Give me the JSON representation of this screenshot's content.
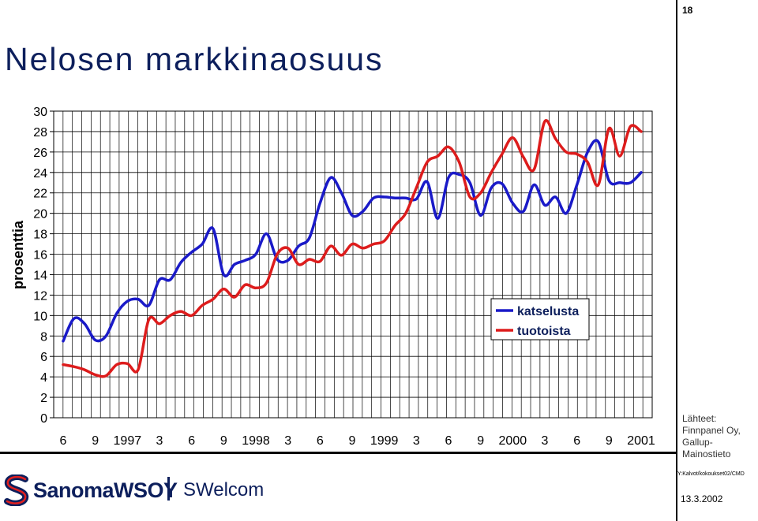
{
  "slide": {
    "page_number": "18",
    "title": "Nelosen markkinaosuus",
    "sources_label": "Lähteet:",
    "sources": [
      "Finnpanel Oy,",
      "Gallup-Mainostieto"
    ],
    "file_path": "Y:Kalvot/kokoukset02/CMD",
    "date": "13.3.2002",
    "logo_text": "SanomaWSOY",
    "division": "SWelcom"
  },
  "colors": {
    "title": "#0d1f5c",
    "katselusta": "#1a1ac8",
    "tuotoista": "#dd1c1c"
  },
  "chart_data": {
    "type": "line",
    "title": "",
    "xlabel": "",
    "ylabel": "prosenttia",
    "ylim": [
      0,
      30
    ],
    "yticks": [
      "0",
      "2",
      "4",
      "6",
      "8",
      "10",
      "12",
      "14",
      "16",
      "18",
      "20",
      "22",
      "24",
      "26",
      "28",
      "30"
    ],
    "xtick_labels": [
      "6",
      "9",
      "1997",
      "3",
      "6",
      "9",
      "1998",
      "3",
      "6",
      "9",
      "1999",
      "3",
      "6",
      "9",
      "2000",
      "3",
      "6",
      "9",
      "2001"
    ],
    "x_start": "1996-06",
    "x_end": "2001-10",
    "grid": true,
    "legend_position": "center-right",
    "series": [
      {
        "name": "katselusta",
        "values": [
          7.5,
          9.7,
          9.2,
          7.6,
          8.0,
          10.2,
          11.4,
          11.6,
          11.0,
          13.5,
          13.5,
          15.2,
          16.2,
          17.0,
          18.5,
          14.0,
          15.0,
          15.4,
          16.0,
          18.0,
          15.5,
          15.4,
          16.8,
          17.6,
          21.0,
          23.5,
          22.0,
          19.8,
          20.2,
          21.5,
          21.6,
          21.5,
          21.5,
          21.4,
          23.1,
          19.5,
          23.5,
          23.8,
          23.0,
          19.8,
          22.5,
          22.9,
          21.0,
          20.2,
          22.8,
          20.8,
          21.6,
          20.0,
          22.8,
          26.0,
          27.0,
          23.2,
          23.0,
          23.0,
          24.0
        ]
      },
      {
        "name": "tuotoista",
        "values": [
          5.2,
          5.0,
          4.7,
          4.2,
          4.1,
          5.2,
          5.3,
          4.7,
          9.6,
          9.2,
          10.0,
          10.4,
          10.0,
          11.0,
          11.6,
          12.6,
          11.8,
          13.0,
          12.7,
          13.2,
          16.0,
          16.6,
          15.0,
          15.5,
          15.3,
          16.8,
          15.9,
          17.0,
          16.6,
          17.0,
          17.3,
          18.8,
          20.0,
          22.5,
          25.0,
          25.6,
          26.5,
          25.0,
          21.6,
          22.0,
          24.0,
          25.8,
          27.4,
          25.5,
          24.3,
          29.0,
          27.3,
          26.0,
          25.8,
          25.0,
          22.8,
          28.3,
          25.6,
          28.5,
          28.0
        ]
      }
    ]
  }
}
